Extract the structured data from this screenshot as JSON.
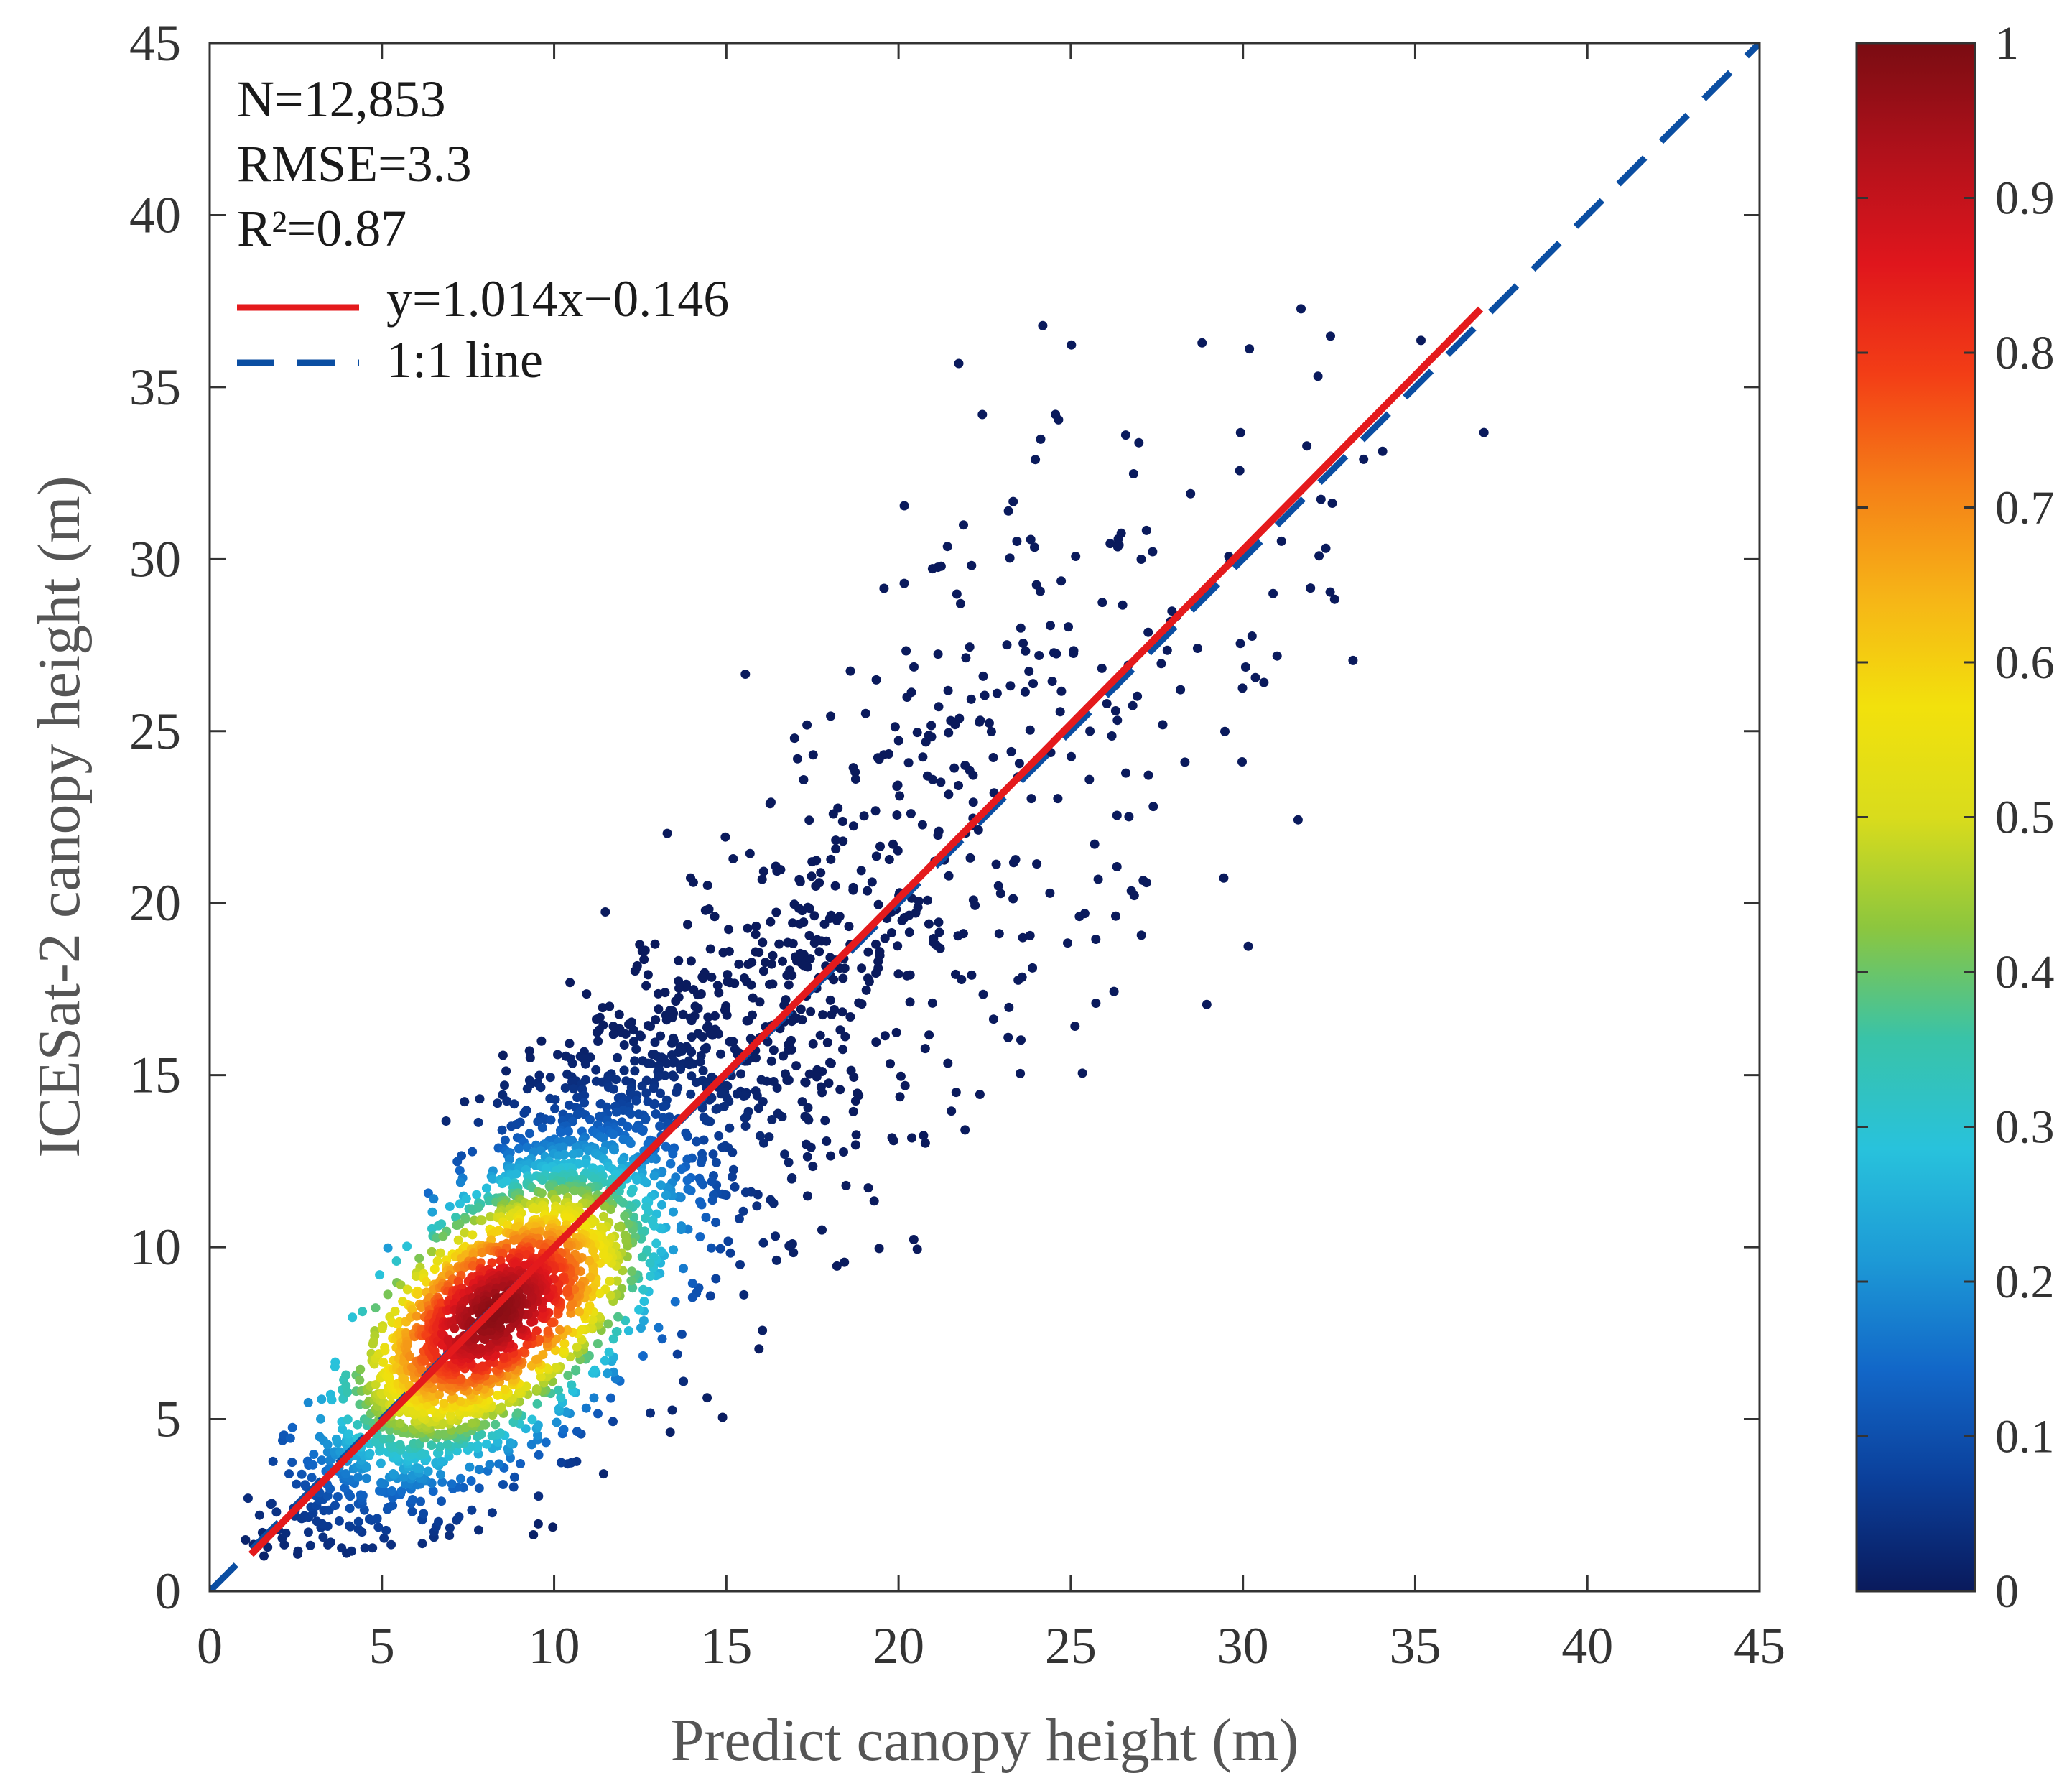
{
  "chart_data": {
    "type": "scatter",
    "subtype": "density-colored scatter",
    "xlabel": "Predict canopy height (m)",
    "ylabel": "ICESat-2 canopy height (m)",
    "xlim": [
      0,
      45
    ],
    "ylim": [
      0,
      45
    ],
    "xticks": [
      "0",
      "5",
      "10",
      "15",
      "20",
      "25",
      "30",
      "35",
      "40",
      "45"
    ],
    "yticks": [
      "0",
      "5",
      "10",
      "15",
      "20",
      "25",
      "30",
      "35",
      "40",
      "45"
    ],
    "stats": {
      "n_label": "N=12,853",
      "rmse_label": "RMSE=3.3",
      "r2_label": "R²=0.87"
    },
    "legend": [
      {
        "label": "y=1.014x−0.146",
        "style": "solid",
        "color": "#e41a1c"
      },
      {
        "label": "1:1 line",
        "style": "dashed",
        "color": "#0b4ea2"
      }
    ],
    "fit_line": {
      "slope": 1.014,
      "intercept": -0.146,
      "x_range": [
        1.2,
        36.9
      ]
    },
    "identity_line": {
      "x_range": [
        0,
        45
      ]
    },
    "density_center": {
      "x": 8.3,
      "y": 8.1
    },
    "point_count_drawn": 3200,
    "colorbar": {
      "range": [
        0,
        1
      ],
      "ticks": [
        "0",
        "0.1",
        "0.2",
        "0.3",
        "0.4",
        "0.5",
        "0.6",
        "0.7",
        "0.8",
        "0.9",
        "1"
      ],
      "colormap": [
        "#0a1a5c",
        "#0b3f9a",
        "#1267c8",
        "#1d9ad6",
        "#28c2dc",
        "#39c3a8",
        "#8cc63e",
        "#d9dc1c",
        "#f2e10c",
        "#f6b417",
        "#f57f17",
        "#f33e16",
        "#e0161c",
        "#b1111b",
        "#7a0c12"
      ]
    }
  }
}
